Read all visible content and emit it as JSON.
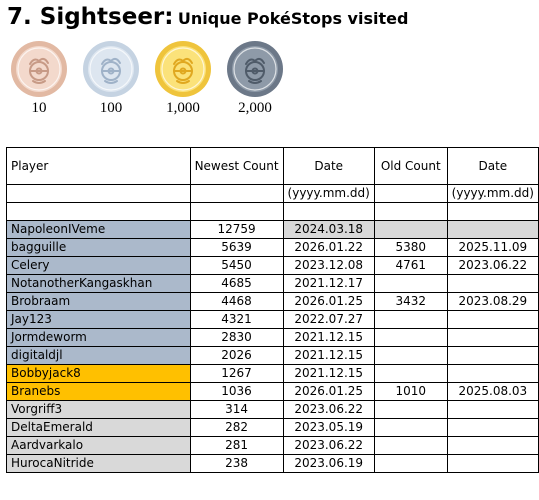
{
  "header": {
    "number_title": "7. Sightseer:",
    "subtitle": "Unique PokéStops visited"
  },
  "medals": [
    {
      "label": "10",
      "tier": "bronze",
      "fill": "#f3d9cc",
      "ring": "#e2b9a3",
      "icon": "#c79a86",
      "icon_name": "medal-bronze-icon"
    },
    {
      "label": "100",
      "tier": "silver",
      "fill": "#dde6f0",
      "ring": "#c5d3e2",
      "icon": "#9fb2c8",
      "icon_name": "medal-silver-icon"
    },
    {
      "label": "1,000",
      "tier": "gold",
      "fill": "#fbe27a",
      "ring": "#efc43c",
      "icon": "#e0a820",
      "icon_name": "medal-gold-icon"
    },
    {
      "label": "2,000",
      "tier": "platinum",
      "fill": "#8e9aa8",
      "ring": "#6c7888",
      "icon": "#4f5b69",
      "icon_name": "medal-platinum-icon"
    }
  ],
  "table": {
    "headers": {
      "player": "Player",
      "newest_count": "Newest Count",
      "date": "Date",
      "old_count": "Old Count",
      "date2": "Date"
    },
    "format_row": {
      "date": "(yyyy.mm.dd)",
      "date2": "(yyyy.mm.dd)"
    },
    "colors": {
      "silver": "#abb9cb",
      "gold": "#ffc000",
      "plain": "#d9d9d9"
    },
    "rows": [
      {
        "player": "NapoleonIVeme",
        "newest": "12759",
        "date": "2024.03.18",
        "old": "",
        "date2": "",
        "tier": "silver",
        "old_gray": true
      },
      {
        "player": "bagguille",
        "newest": "5639",
        "date": "2026.01.22",
        "old": "5380",
        "date2": "2025.11.09",
        "tier": "silver",
        "old_gray": false
      },
      {
        "player": "Celery",
        "newest": "5450",
        "date": "2023.12.08",
        "old": "4761",
        "date2": "2023.06.22",
        "tier": "silver",
        "old_gray": false
      },
      {
        "player": "NotanotherKangaskhan",
        "newest": "4685",
        "date": "2021.12.17",
        "old": "",
        "date2": "",
        "tier": "silver",
        "old_gray": false
      },
      {
        "player": "Brobraam",
        "newest": "4468",
        "date": "2026.01.25",
        "old": "3432",
        "date2": "2023.08.29",
        "tier": "silver",
        "old_gray": false
      },
      {
        "player": "Jay123",
        "newest": "4321",
        "date": "2022.07.27",
        "old": "",
        "date2": "",
        "tier": "silver",
        "old_gray": false
      },
      {
        "player": "Jormdeworm",
        "newest": "2830",
        "date": "2021.12.15",
        "old": "",
        "date2": "",
        "tier": "silver",
        "old_gray": false
      },
      {
        "player": "digitaldjl",
        "newest": "2026",
        "date": "2021.12.15",
        "old": "",
        "date2": "",
        "tier": "silver",
        "old_gray": false
      },
      {
        "player": "Bobbyjack8",
        "newest": "1267",
        "date": "2021.12.15",
        "old": "",
        "date2": "",
        "tier": "gold",
        "old_gray": false
      },
      {
        "player": "Branebs",
        "newest": "1036",
        "date": "2026.01.25",
        "old": "1010",
        "date2": "2025.08.03",
        "tier": "gold",
        "old_gray": false
      },
      {
        "player": "Vorgriff3",
        "newest": "314",
        "date": "2023.06.22",
        "old": "",
        "date2": "",
        "tier": "plain",
        "old_gray": false
      },
      {
        "player": "DeltaEmerald",
        "newest": "282",
        "date": "2023.05.19",
        "old": "",
        "date2": "",
        "tier": "plain",
        "old_gray": false
      },
      {
        "player": "Aardvarkalo",
        "newest": "281",
        "date": "2023.06.22",
        "old": "",
        "date2": "",
        "tier": "plain",
        "old_gray": false
      },
      {
        "player": "HurocaNitride",
        "newest": "238",
        "date": "2023.06.19",
        "old": "",
        "date2": "",
        "tier": "plain",
        "old_gray": false
      }
    ]
  }
}
